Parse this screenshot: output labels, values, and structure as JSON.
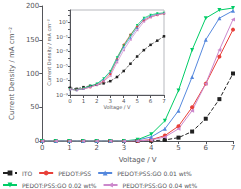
{
  "chart_data": [
    {
      "type": "line",
      "xlabel": "Voltage / V",
      "ylabel": "Current Density / mA cm⁻²",
      "xlim": [
        0,
        7
      ],
      "ylim": [
        0,
        200
      ],
      "xticks": [
        0,
        1,
        2,
        3,
        4,
        5,
        6,
        7
      ],
      "yticks": [
        0,
        50,
        100,
        150,
        200
      ],
      "grid": false,
      "legend": "lower left",
      "x": [
        0,
        0.5,
        1.0,
        1.5,
        2.0,
        2.5,
        3.0,
        3.5,
        4.0,
        4.5,
        5.0,
        5.5,
        6.0,
        6.5,
        7.0
      ],
      "series": [
        {
          "name": "ITO",
          "color": "#222222",
          "marker": "square",
          "line_style": "dashed",
          "values": [
            0,
            0,
            0,
            0,
            0,
            0,
            0,
            0,
            0.3,
            1.5,
            5,
            14,
            33,
            62,
            100
          ]
        },
        {
          "name": "PEDOT:PSS",
          "color": "#e8403a",
          "marker": "circle",
          "line_style": "solid",
          "values": [
            0,
            0,
            0,
            0,
            0,
            0,
            0,
            0.3,
            2,
            8,
            22,
            50,
            85,
            125,
            165
          ]
        },
        {
          "name": "PEDOT:PSS:GO 0.01 wt%",
          "color": "#5588dd",
          "marker": "triangle-up",
          "line_style": "solid",
          "values": [
            0,
            0,
            0,
            0,
            0,
            0,
            0.3,
            1.5,
            6,
            18,
            45,
            95,
            150,
            182,
            193
          ]
        },
        {
          "name": "PEDOT:PSS:GO 0.02 wt%",
          "color": "#00cc66",
          "marker": "triangle-down",
          "line_style": "solid",
          "values": [
            0,
            0,
            0,
            0,
            0,
            0,
            0.1,
            2,
            10,
            30,
            75,
            135,
            182,
            194,
            197
          ]
        },
        {
          "name": "PEDOT:PSS:GO 0.04 wt%",
          "color": "#cc88cc",
          "marker": "triangle-left",
          "line_style": "solid",
          "values": [
            0,
            0,
            0,
            0,
            0,
            0,
            0,
            0.1,
            1.5,
            6,
            18,
            45,
            85,
            135,
            180
          ]
        }
      ]
    },
    {
      "type": "line",
      "log": "y",
      "xlabel": "Voltage / V",
      "ylabel": "Current Density / mA cm⁻²",
      "xlim": [
        0,
        7
      ],
      "ylim": [
        1e-09,
        500
      ],
      "xticks": [
        0,
        1,
        2,
        3,
        4,
        5,
        6,
        7
      ],
      "yticks": [
        {
          "value": 1e-09,
          "label": "10⁻⁹"
        },
        {
          "value": 1e-07,
          "label": "10⁻⁷"
        },
        {
          "value": 1e-05,
          "label": "10⁻⁵"
        },
        {
          "value": 0.001,
          "label": "10⁻³"
        },
        {
          "value": 0.1,
          "label": "10⁻¹"
        },
        {
          "value": 10,
          "label": "10¹"
        }
      ],
      "grid": false,
      "x": [
        0,
        0.5,
        1.0,
        1.5,
        2.0,
        2.5,
        3.0,
        3.5,
        4.0,
        4.5,
        5.0,
        5.5,
        6.0,
        6.5,
        7.0
      ],
      "series": [
        {
          "name": "ITO",
          "color": "#222222",
          "marker": "square",
          "line_style": "dashed",
          "values": [
            1e-08,
            7e-09,
            1.2e-08,
            1.8e-08,
            2.5e-08,
            4e-08,
            8e-08,
            3e-07,
            2e-06,
            2e-05,
            0.0002,
            0.0015,
            0.008,
            0.03,
            0.12
          ]
        },
        {
          "name": "PEDOT:PSS",
          "color": "#e8403a",
          "marker": "circle",
          "line_style": "solid",
          "values": [
            6e-09,
            5e-09,
            7e-09,
            1.2e-08,
            2.5e-08,
            8e-08,
            8e-07,
            8e-05,
            0.008,
            0.2,
            2.5,
            18,
            55,
            105,
            165
          ]
        },
        {
          "name": "PEDOT:PSS:GO 0.01 wt%",
          "color": "#5588dd",
          "marker": "triangle-up",
          "line_style": "solid",
          "values": [
            6e-09,
            5e-09,
            7e-09,
            1.5e-08,
            3e-08,
            1.5e-07,
            1.5e-06,
            8e-05,
            0.004,
            0.08,
            1.8,
            28,
            75,
            145,
            193
          ]
        },
        {
          "name": "PEDOT:PSS:GO 0.02 wt%",
          "color": "#00cc66",
          "marker": "triangle-down",
          "line_style": "solid",
          "values": [
            6e-09,
            5e-09,
            8e-09,
            1.8e-08,
            3.5e-08,
            1.8e-07,
            1.8e-06,
            0.00015,
            0.006,
            0.15,
            4,
            40,
            105,
            170,
            197
          ]
        },
        {
          "name": "PEDOT:PSS:GO 0.04 wt%",
          "color": "#cc88cc",
          "marker": "triangle-left",
          "line_style": "solid",
          "values": [
            6e-09,
            5e-09,
            7e-09,
            1.2e-08,
            2.5e-08,
            8e-08,
            4e-07,
            3e-05,
            0.0015,
            0.04,
            0.8,
            12,
            48,
            105,
            175
          ]
        }
      ]
    }
  ]
}
